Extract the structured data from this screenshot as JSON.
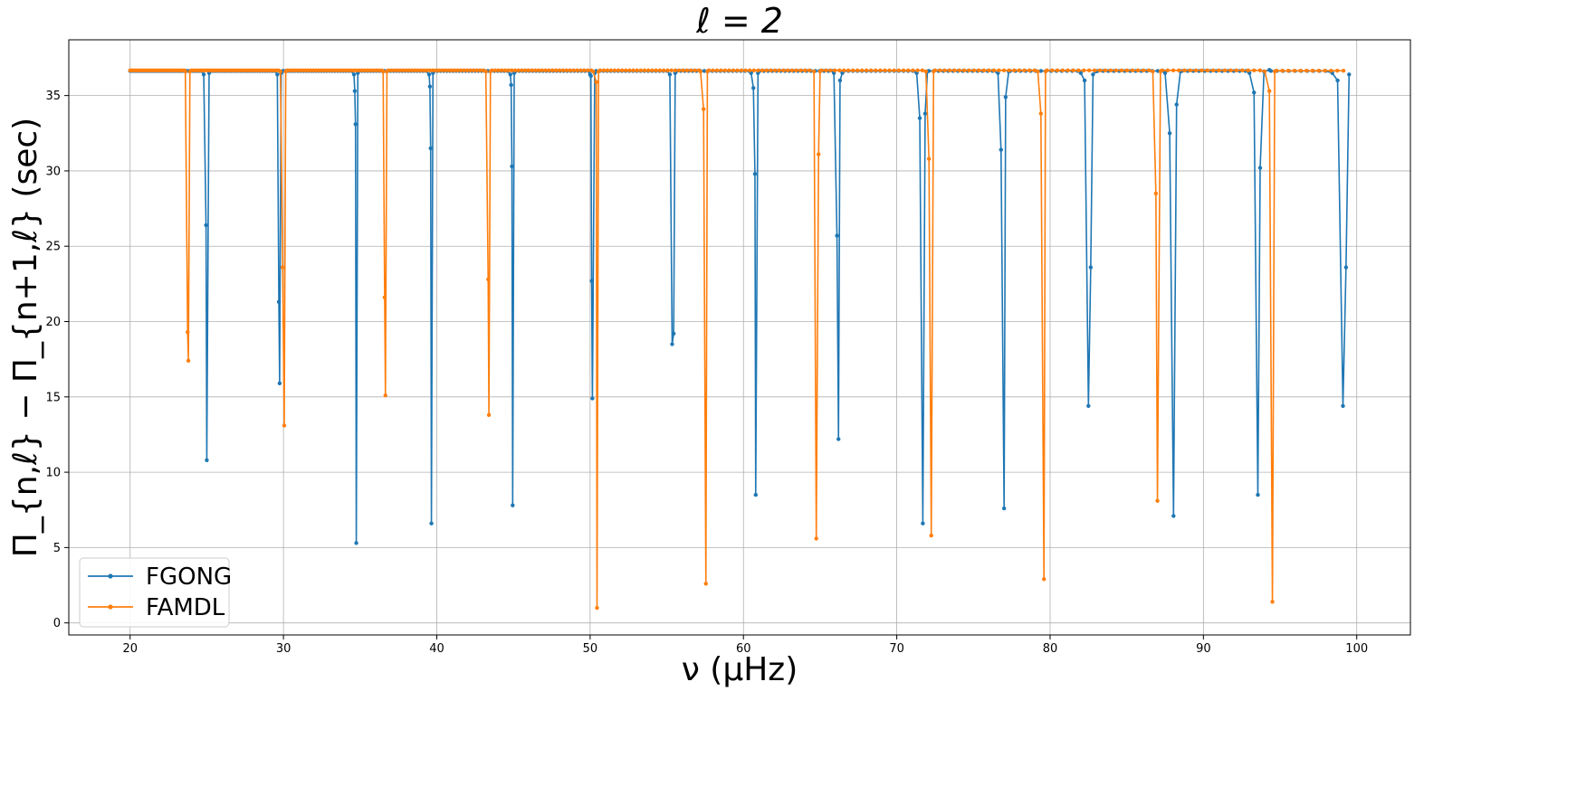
{
  "chart_data": {
    "type": "line",
    "title": "ℓ = 2",
    "xlabel": "ν (μHz)",
    "ylabel": "Π_{n,ℓ} − Π_{n+1,ℓ} (sec)",
    "xlim": [
      16,
      103.5
    ],
    "ylim": [
      -0.8,
      38.7
    ],
    "xticks": [
      20,
      30,
      40,
      50,
      60,
      70,
      80,
      90,
      100
    ],
    "yticks": [
      0,
      5,
      10,
      15,
      20,
      25,
      30,
      35
    ],
    "grid": true,
    "legend_position": "lower-left",
    "baseline": 36.65,
    "series": [
      {
        "name": "FGONG",
        "color": "#1f77b4",
        "dips": [
          [
            [
              24.8,
              36.4
            ],
            [
              24.95,
              26.4
            ],
            [
              25.0,
              10.8
            ],
            [
              25.15,
              36.5
            ]
          ],
          [
            [
              29.6,
              36.4
            ],
            [
              29.7,
              21.3
            ],
            [
              29.75,
              15.9
            ],
            [
              29.85,
              36.5
            ]
          ],
          [
            [
              34.6,
              36.4
            ],
            [
              34.65,
              35.3
            ],
            [
              34.7,
              33.1
            ],
            [
              34.75,
              5.3
            ],
            [
              34.85,
              36.5
            ]
          ],
          [
            [
              39.5,
              36.4
            ],
            [
              39.55,
              35.6
            ],
            [
              39.6,
              31.5
            ],
            [
              39.65,
              6.6
            ],
            [
              39.75,
              36.5
            ]
          ],
          [
            [
              44.8,
              36.4
            ],
            [
              44.85,
              35.7
            ],
            [
              44.9,
              30.3
            ],
            [
              44.95,
              7.8
            ],
            [
              45.05,
              36.5
            ]
          ],
          [
            [
              50.0,
              36.4
            ],
            [
              50.05,
              36.3
            ],
            [
              50.1,
              22.7
            ],
            [
              50.15,
              14.9
            ],
            [
              50.3,
              36.5
            ]
          ],
          [
            [
              55.2,
              36.4
            ],
            [
              55.35,
              18.5
            ],
            [
              55.45,
              19.2
            ],
            [
              55.55,
              36.5
            ]
          ],
          [
            [
              60.5,
              36.5
            ],
            [
              60.65,
              35.5
            ],
            [
              60.75,
              29.8
            ],
            [
              60.8,
              8.5
            ],
            [
              60.95,
              36.5
            ]
          ],
          [
            [
              65.9,
              36.5
            ],
            [
              66.1,
              25.7
            ],
            [
              66.2,
              12.2
            ],
            [
              66.3,
              36.0
            ],
            [
              66.45,
              36.5
            ]
          ],
          [
            [
              71.3,
              36.5
            ],
            [
              71.5,
              33.5
            ],
            [
              71.7,
              6.6
            ],
            [
              71.85,
              33.8
            ],
            [
              72.0,
              36.6
            ]
          ],
          [
            [
              76.6,
              36.5
            ],
            [
              76.8,
              31.4
            ],
            [
              77.0,
              7.6
            ],
            [
              77.1,
              34.9
            ],
            [
              77.3,
              36.6
            ]
          ],
          [
            [
              82.0,
              36.5
            ],
            [
              82.25,
              36.0
            ],
            [
              82.5,
              14.4
            ],
            [
              82.65,
              23.6
            ],
            [
              82.8,
              36.4
            ],
            [
              83.0,
              36.6
            ]
          ],
          [
            [
              87.5,
              36.5
            ],
            [
              87.8,
              32.5
            ],
            [
              88.05,
              7.1
            ],
            [
              88.25,
              34.4
            ],
            [
              88.5,
              36.6
            ]
          ],
          [
            [
              93.0,
              36.5
            ],
            [
              93.3,
              35.2
            ],
            [
              93.55,
              8.5
            ],
            [
              93.7,
              30.2
            ],
            [
              93.95,
              36.6
            ],
            [
              94.3,
              36.7
            ]
          ],
          [
            [
              98.4,
              36.5
            ],
            [
              98.75,
              36.0
            ],
            [
              99.1,
              14.4
            ],
            [
              99.3,
              23.6
            ],
            [
              99.5,
              36.4
            ]
          ]
        ]
      },
      {
        "name": "FAMDL",
        "color": "#ff7f0e",
        "dips": [
          [
            [
              23.6,
              36.6
            ],
            [
              23.75,
              19.3
            ],
            [
              23.8,
              17.4
            ],
            [
              23.9,
              36.6
            ]
          ],
          [
            [
              29.8,
              36.6
            ],
            [
              29.95,
              23.6
            ],
            [
              30.05,
              13.1
            ],
            [
              30.15,
              36.6
            ]
          ],
          [
            [
              36.5,
              36.6
            ],
            [
              36.6,
              21.6
            ],
            [
              36.65,
              15.1
            ],
            [
              36.75,
              36.6
            ]
          ],
          [
            [
              43.2,
              36.6
            ],
            [
              43.35,
              22.8
            ],
            [
              43.4,
              13.8
            ],
            [
              43.5,
              36.6
            ]
          ],
          [
            [
              50.2,
              36.6
            ],
            [
              50.4,
              35.9
            ],
            [
              50.45,
              1.0
            ],
            [
              50.55,
              36.6
            ]
          ],
          [
            [
              57.2,
              36.6
            ],
            [
              57.4,
              34.1
            ],
            [
              57.55,
              2.6
            ],
            [
              57.65,
              36.6
            ]
          ],
          [
            [
              64.6,
              36.6
            ],
            [
              64.75,
              5.6
            ],
            [
              64.9,
              31.1
            ],
            [
              65.0,
              36.6
            ]
          ],
          [
            [
              71.9,
              36.6
            ],
            [
              72.1,
              30.8
            ],
            [
              72.25,
              5.8
            ],
            [
              72.4,
              36.6
            ]
          ],
          [
            [
              79.2,
              36.6
            ],
            [
              79.4,
              33.8
            ],
            [
              79.6,
              2.9
            ],
            [
              79.7,
              36.6
            ]
          ],
          [
            [
              86.7,
              36.6
            ],
            [
              86.9,
              28.5
            ],
            [
              87.0,
              8.1
            ],
            [
              87.2,
              36.6
            ]
          ],
          [
            [
              94.0,
              36.6
            ],
            [
              94.3,
              35.3
            ],
            [
              94.5,
              1.4
            ],
            [
              94.65,
              36.6
            ]
          ]
        ]
      }
    ]
  }
}
